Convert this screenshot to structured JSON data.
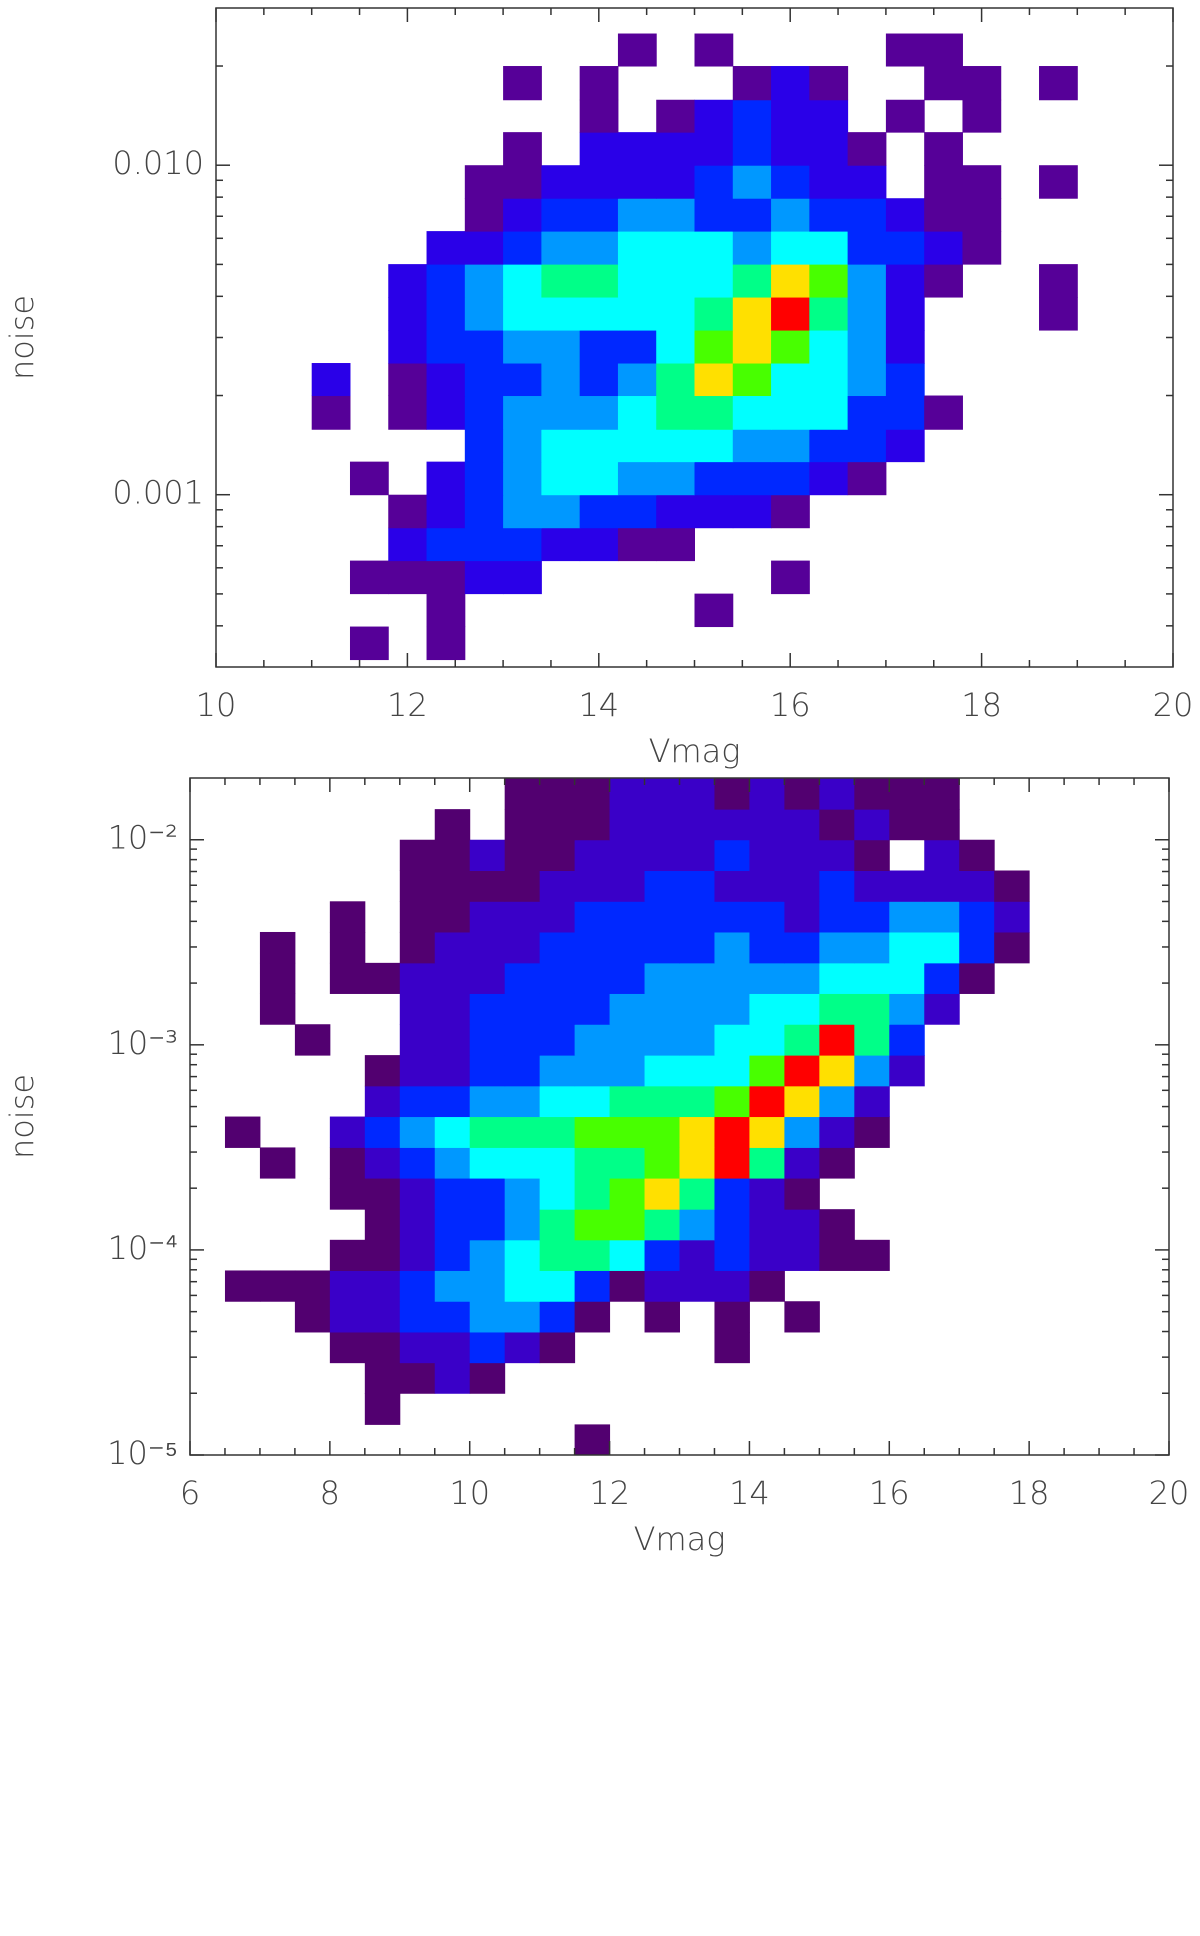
{
  "chart_data": [
    {
      "type": "heatmap",
      "xlabel": "Vmag",
      "ylabel": "noise",
      "xlim": [
        10,
        20
      ],
      "ylim": [
        0.0003,
        0.03
      ],
      "ylog": true,
      "xticks": [
        10,
        12,
        14,
        16,
        18,
        20
      ],
      "xminorticks": [
        10.5,
        11,
        11.5,
        12.5,
        13,
        13.5,
        14.5,
        15,
        15.5,
        16.5,
        17,
        17.5,
        18.5,
        19,
        19.5
      ],
      "yticks": [
        0.001,
        {
          "value": 0.01,
          "label": "0.010"
        }
      ],
      "yminorticks": [
        0.0004,
        0.0005,
        0.0006,
        0.0007,
        0.0008,
        0.0009,
        0.002,
        0.003,
        0.004,
        0.005,
        0.006,
        0.007,
        0.008,
        0.009,
        0.02
      ],
      "colors": [
        "#560098",
        "#2a00e8",
        "#0028ff",
        "#0098ff",
        "#00ffff",
        "#00ff88",
        "#48ff00",
        "#ffe000",
        "#ff0000"
      ],
      "xbins": [
        11,
        11.4,
        11.8,
        12.2,
        12.6,
        13,
        13.4,
        13.8,
        14.2,
        14.6,
        15,
        15.4,
        15.8,
        16.2,
        16.6,
        17,
        17.4,
        17.8,
        18.2,
        18.6,
        19,
        19.4
      ],
      "ybins": [
        0.000316,
        0.000398,
        0.000501,
        0.000631,
        0.000794,
        0.001,
        0.00126,
        0.00158,
        0.002,
        0.00251,
        0.00316,
        0.00398,
        0.00501,
        0.00631,
        0.00794,
        0.01,
        0.0126,
        0.0158,
        0.02,
        0.0251
      ],
      "z": [
        [
          0,
          1,
          0,
          1,
          0,
          0,
          0,
          0,
          0,
          0,
          0,
          0,
          0,
          0,
          0,
          0,
          0,
          0,
          0,
          0,
          0
        ],
        [
          0,
          0,
          0,
          1,
          0,
          0,
          0,
          0,
          0,
          0,
          1,
          0,
          0,
          0,
          0,
          0,
          0,
          0,
          0,
          0,
          0
        ],
        [
          0,
          1,
          1,
          1,
          2,
          2,
          0,
          0,
          0,
          0,
          0,
          0,
          1,
          0,
          0,
          0,
          0,
          0,
          0,
          0,
          0
        ],
        [
          0,
          0,
          2,
          3,
          3,
          3,
          2,
          2,
          1,
          1,
          0,
          0,
          0,
          0,
          0,
          0,
          0,
          0,
          0,
          0,
          0
        ],
        [
          0,
          0,
          1,
          2,
          3,
          4,
          4,
          3,
          3,
          2,
          2,
          2,
          1,
          0,
          0,
          0,
          0,
          0,
          0,
          0,
          0
        ],
        [
          0,
          1,
          0,
          2,
          3,
          4,
          5,
          5,
          4,
          4,
          3,
          3,
          3,
          2,
          1,
          0,
          0,
          0,
          0,
          0,
          0
        ],
        [
          0,
          0,
          0,
          0,
          3,
          4,
          5,
          5,
          5,
          5,
          5,
          4,
          4,
          3,
          3,
          2,
          0,
          0,
          0,
          0,
          0
        ],
        [
          1,
          0,
          1,
          2,
          3,
          4,
          4,
          4,
          5,
          6,
          6,
          5,
          5,
          5,
          3,
          3,
          1,
          0,
          0,
          0,
          0
        ],
        [
          2,
          0,
          1,
          2,
          3,
          3,
          4,
          3,
          4,
          6,
          8,
          7,
          5,
          5,
          4,
          3,
          0,
          0,
          0,
          0,
          0
        ],
        [
          0,
          0,
          2,
          3,
          3,
          4,
          4,
          3,
          3,
          5,
          7,
          8,
          7,
          5,
          4,
          2,
          0,
          0,
          0,
          0,
          0
        ],
        [
          0,
          0,
          2,
          3,
          4,
          5,
          5,
          5,
          5,
          5,
          6,
          8,
          9,
          6,
          4,
          2,
          0,
          0,
          0,
          1,
          0
        ],
        [
          0,
          0,
          2,
          3,
          4,
          5,
          6,
          6,
          5,
          5,
          5,
          6,
          8,
          7,
          4,
          2,
          1,
          0,
          0,
          1,
          0
        ],
        [
          0,
          0,
          0,
          2,
          2,
          3,
          4,
          4,
          5,
          5,
          5,
          4,
          5,
          5,
          3,
          3,
          2,
          1,
          0,
          0,
          0
        ],
        [
          0,
          0,
          0,
          0,
          1,
          2,
          3,
          3,
          4,
          4,
          3,
          3,
          4,
          3,
          3,
          2,
          1,
          1,
          0,
          0,
          0
        ],
        [
          0,
          0,
          0,
          0,
          1,
          1,
          2,
          2,
          2,
          2,
          3,
          4,
          3,
          2,
          2,
          0,
          1,
          1,
          0,
          1,
          0
        ],
        [
          0,
          0,
          0,
          0,
          0,
          1,
          0,
          2,
          2,
          2,
          2,
          3,
          2,
          2,
          1,
          0,
          1,
          0,
          0,
          0,
          0
        ],
        [
          0,
          0,
          0,
          0,
          0,
          0,
          0,
          1,
          0,
          1,
          2,
          3,
          2,
          2,
          0,
          1,
          0,
          1,
          0,
          0,
          0
        ],
        [
          0,
          0,
          0,
          0,
          0,
          1,
          0,
          1,
          0,
          0,
          0,
          1,
          2,
          1,
          0,
          0,
          1,
          1,
          0,
          1,
          0
        ],
        [
          0,
          0,
          0,
          0,
          0,
          0,
          0,
          0,
          1,
          0,
          1,
          0,
          0,
          0,
          0,
          1,
          1,
          0,
          0,
          0,
          0
        ]
      ]
    },
    {
      "type": "heatmap",
      "xlabel": "Vmag",
      "ylabel": "noise",
      "xlim": [
        6,
        20
      ],
      "ylim": [
        1e-05,
        0.02
      ],
      "ylog": true,
      "xticks": [
        6,
        8,
        10,
        12,
        14,
        16,
        18,
        20
      ],
      "xminorticks": [
        6.5,
        7,
        7.5,
        8.5,
        9,
        9.5,
        10.5,
        11,
        11.5,
        12.5,
        13,
        13.5,
        14.5,
        15,
        15.5,
        16.5,
        17,
        17.5,
        18.5,
        19,
        19.5
      ],
      "yticks": [
        {
          "value": 1e-05,
          "label": "10⁻⁵"
        },
        {
          "value": 0.0001,
          "label": "10⁻⁴"
        },
        {
          "value": 0.001,
          "label": "10⁻³"
        },
        {
          "value": 0.01,
          "label": "10⁻²"
        }
      ],
      "yminorticks": [
        2e-05,
        3e-05,
        4e-05,
        5e-05,
        6e-05,
        7e-05,
        8e-05,
        9e-05,
        0.0002,
        0.0003,
        0.0004,
        0.0005,
        0.0006,
        0.0007,
        0.0008,
        0.0009,
        0.002,
        0.003,
        0.004,
        0.005,
        0.006,
        0.007,
        0.008,
        0.009
      ],
      "colors": [
        "#520070",
        "#3a00c8",
        "#0028ff",
        "#0098ff",
        "#00ffff",
        "#00ff88",
        "#48ff00",
        "#ffe000",
        "#ff0000"
      ],
      "xbins": [
        6.5,
        7,
        7.5,
        8,
        8.5,
        9,
        9.5,
        10,
        10.5,
        11,
        11.5,
        12,
        12.5,
        13,
        13.5,
        14,
        14.5,
        15,
        15.5,
        16,
        16.5,
        17,
        17.5,
        18,
        18.5,
        19
      ],
      "ybins": [
        1e-05,
        1.41e-05,
        2e-05,
        2.82e-05,
        3.98e-05,
        5.62e-05,
        7.94e-05,
        0.000112,
        0.000158,
        0.000224,
        0.000316,
        0.000447,
        0.000631,
        0.000891,
        0.00126,
        0.00178,
        0.00251,
        0.00355,
        0.00501,
        0.00708,
        0.01,
        0.0141,
        0.02
      ],
      "z": [
        [
          0,
          0,
          0,
          0,
          0,
          0,
          0,
          0,
          0,
          0,
          1,
          0,
          0,
          0,
          0,
          0,
          0,
          0,
          0,
          0,
          0,
          0,
          0,
          0,
          0
        ],
        [
          0,
          0,
          0,
          0,
          1,
          0,
          0,
          0,
          0,
          0,
          0,
          0,
          0,
          0,
          0,
          0,
          0,
          0,
          0,
          0,
          0,
          0,
          0,
          0,
          0
        ],
        [
          0,
          0,
          0,
          0,
          1,
          1,
          2,
          1,
          0,
          0,
          0,
          0,
          0,
          0,
          0,
          0,
          0,
          0,
          0,
          0,
          0,
          0,
          0,
          0,
          0
        ],
        [
          0,
          0,
          0,
          1,
          1,
          2,
          2,
          3,
          2,
          1,
          0,
          0,
          0,
          0,
          1,
          0,
          0,
          0,
          0,
          0,
          0,
          0,
          0,
          0,
          0
        ],
        [
          0,
          0,
          1,
          2,
          2,
          3,
          3,
          4,
          4,
          3,
          1,
          0,
          1,
          0,
          1,
          0,
          1,
          0,
          0,
          0,
          0,
          0,
          0,
          0,
          0
        ],
        [
          1,
          1,
          1,
          2,
          2,
          3,
          4,
          4,
          5,
          5,
          3,
          1,
          2,
          2,
          2,
          1,
          0,
          0,
          0,
          0,
          0,
          0,
          0,
          0,
          0
        ],
        [
          0,
          0,
          0,
          1,
          1,
          2,
          3,
          4,
          5,
          6,
          6,
          5,
          3,
          2,
          3,
          2,
          2,
          1,
          1,
          0,
          0,
          0,
          0,
          0,
          0
        ],
        [
          0,
          0,
          0,
          0,
          1,
          2,
          3,
          3,
          4,
          6,
          7,
          7,
          6,
          4,
          3,
          2,
          2,
          1,
          0,
          0,
          0,
          0,
          0,
          0,
          0
        ],
        [
          0,
          0,
          0,
          1,
          1,
          2,
          3,
          3,
          4,
          5,
          6,
          7,
          8,
          6,
          3,
          2,
          1,
          0,
          0,
          0,
          0,
          0,
          0,
          0,
          0
        ],
        [
          0,
          1,
          0,
          1,
          2,
          3,
          4,
          5,
          5,
          5,
          6,
          6,
          7,
          8,
          9,
          6,
          2,
          1,
          0,
          0,
          0,
          0,
          0,
          0,
          0
        ],
        [
          1,
          0,
          0,
          2,
          3,
          4,
          5,
          6,
          6,
          6,
          7,
          7,
          7,
          8,
          9,
          8,
          4,
          2,
          1,
          0,
          0,
          0,
          0,
          0,
          0
        ],
        [
          0,
          0,
          0,
          0,
          2,
          3,
          3,
          4,
          4,
          5,
          5,
          6,
          6,
          6,
          7,
          9,
          8,
          4,
          2,
          0,
          0,
          0,
          0,
          0,
          0
        ],
        [
          0,
          0,
          0,
          0,
          1,
          2,
          2,
          3,
          3,
          4,
          4,
          4,
          5,
          5,
          5,
          7,
          9,
          8,
          4,
          2,
          0,
          0,
          0,
          0,
          0
        ],
        [
          0,
          0,
          1,
          0,
          0,
          2,
          2,
          3,
          3,
          3,
          4,
          4,
          4,
          4,
          5,
          5,
          6,
          9,
          6,
          3,
          0,
          0,
          0,
          0,
          0
        ],
        [
          0,
          1,
          0,
          0,
          0,
          2,
          2,
          3,
          3,
          3,
          3,
          4,
          4,
          4,
          4,
          5,
          5,
          6,
          6,
          4,
          2,
          0,
          0,
          0,
          0
        ],
        [
          0,
          1,
          0,
          1,
          1,
          2,
          2,
          2,
          3,
          3,
          3,
          3,
          4,
          4,
          4,
          4,
          4,
          5,
          5,
          5,
          3,
          1,
          0,
          0,
          0
        ],
        [
          0,
          1,
          0,
          1,
          0,
          1,
          2,
          2,
          2,
          3,
          3,
          3,
          3,
          3,
          4,
          3,
          3,
          4,
          4,
          5,
          5,
          3,
          1,
          0,
          0
        ],
        [
          0,
          0,
          0,
          1,
          0,
          1,
          1,
          2,
          2,
          2,
          3,
          3,
          3,
          3,
          3,
          3,
          2,
          3,
          3,
          4,
          4,
          3,
          2,
          0,
          0
        ],
        [
          0,
          0,
          0,
          0,
          0,
          1,
          1,
          1,
          1,
          2,
          2,
          2,
          3,
          3,
          2,
          2,
          2,
          3,
          2,
          2,
          2,
          2,
          1,
          0,
          0
        ],
        [
          0,
          0,
          0,
          0,
          0,
          1,
          1,
          2,
          1,
          1,
          2,
          2,
          2,
          2,
          3,
          2,
          2,
          2,
          1,
          0,
          2,
          1,
          0,
          0,
          0
        ],
        [
          0,
          0,
          0,
          0,
          0,
          0,
          1,
          0,
          1,
          1,
          1,
          2,
          2,
          2,
          2,
          2,
          2,
          1,
          2,
          1,
          1,
          0,
          0,
          0,
          0
        ],
        [
          0,
          0,
          0,
          0,
          0,
          0,
          0,
          0,
          1,
          1,
          1,
          2,
          2,
          2,
          1,
          2,
          1,
          2,
          1,
          1,
          1,
          0,
          0,
          0,
          0
        ]
      ]
    }
  ]
}
